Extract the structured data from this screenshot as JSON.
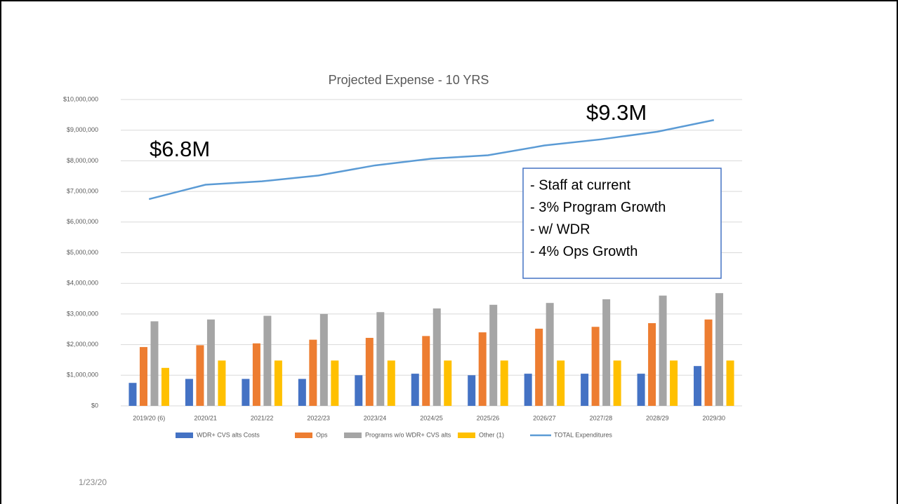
{
  "chart_data": {
    "type": "bar",
    "title": "Projected Expense - 10 YRS",
    "categories": [
      "2019/20 (6)",
      "2020/21",
      "2021/22",
      "2022/23",
      "2023/24",
      "2024/25",
      "2025/26",
      "2026/27",
      "2027/28",
      "2028/29",
      "2029/30"
    ],
    "series": [
      {
        "name": "WDR+ CVS alts Costs",
        "color": "#4472c4",
        "values": [
          750000,
          880000,
          880000,
          880000,
          1000000,
          1050000,
          1000000,
          1050000,
          1050000,
          1050000,
          1300000
        ]
      },
      {
        "name": "Ops",
        "color": "#ed7d31",
        "values": [
          1920000,
          1980000,
          2040000,
          2160000,
          2220000,
          2280000,
          2400000,
          2520000,
          2580000,
          2700000,
          2820000
        ]
      },
      {
        "name": "Programs w/o WDR+ CVS alts",
        "color": "#a5a5a5",
        "values": [
          2760000,
          2820000,
          2940000,
          3000000,
          3060000,
          3180000,
          3300000,
          3360000,
          3480000,
          3600000,
          3680000
        ]
      },
      {
        "name": "Other (1)",
        "color": "#ffc000",
        "values": [
          1240000,
          1480000,
          1480000,
          1480000,
          1480000,
          1480000,
          1480000,
          1480000,
          1480000,
          1480000,
          1480000
        ]
      },
      {
        "name": "TOTAL Expenditures",
        "color": "#5b9bd5",
        "type": "line",
        "values": [
          6750000,
          7220000,
          7330000,
          7520000,
          7850000,
          8070000,
          8180000,
          8500000,
          8700000,
          8950000,
          9330000
        ]
      }
    ],
    "ylim": [
      0,
      10000000
    ],
    "yticks": [
      {
        "value": 0,
        "label": "$0"
      },
      {
        "value": 1000000,
        "label": "$1,000,000"
      },
      {
        "value": 2000000,
        "label": "$2,000,000"
      },
      {
        "value": 3000000,
        "label": "$3,000,000"
      },
      {
        "value": 4000000,
        "label": "$4,000,000"
      },
      {
        "value": 5000000,
        "label": "$5,000,000"
      },
      {
        "value": 6000000,
        "label": "$6,000,000"
      },
      {
        "value": 7000000,
        "label": "$7,000,000"
      },
      {
        "value": 8000000,
        "label": "$8,000,000"
      },
      {
        "value": 9000000,
        "label": "$9,000,000"
      },
      {
        "value": 10000000,
        "label": "$10,000,000"
      }
    ],
    "grid": true,
    "legend": "bottom",
    "annotations": [
      "$6.8M",
      "$9.3M"
    ],
    "notes": [
      "- Staff at current",
      "- 3% Program Growth",
      "- w/ WDR",
      "- 4% Ops Growth"
    ]
  },
  "date": "1/23/20"
}
